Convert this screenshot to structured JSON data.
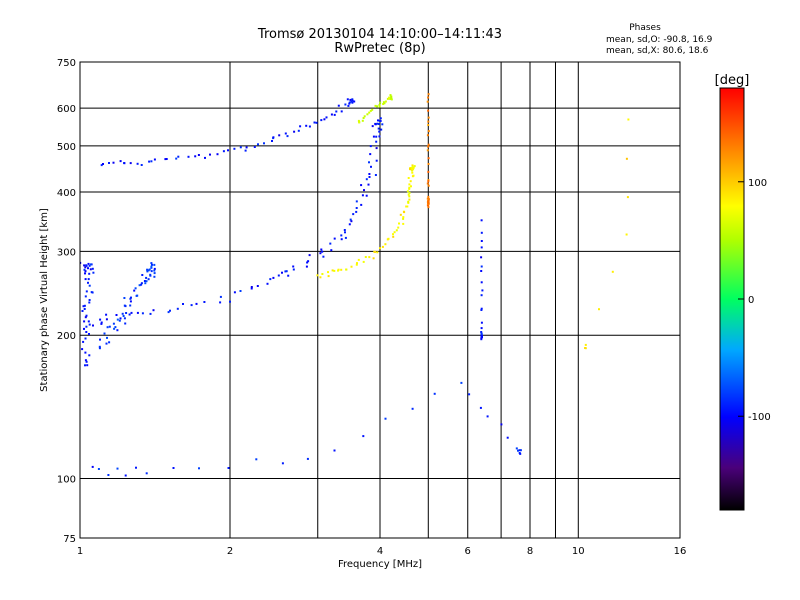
{
  "chart_data": {
    "type": "scatter",
    "title": "Tromsø 20130104 14:10:00–14:11:43",
    "subtitle": "RwPretec (8p)",
    "xlabel": "Frequency [MHz]",
    "ylabel": "Stationary phase Virtual Height [km]",
    "x_scale": "log",
    "y_scale": "log",
    "xlim": [
      1,
      16
    ],
    "ylim": [
      75,
      750
    ],
    "x_ticks": [
      1,
      2,
      4,
      6,
      8,
      10,
      16
    ],
    "y_ticks": [
      75,
      100,
      200,
      300,
      400,
      500,
      600,
      750
    ],
    "x_grid": [
      1,
      2,
      4,
      6,
      8,
      10,
      16
    ],
    "x_minor_grid": [
      3,
      5,
      7,
      9
    ],
    "y_grid": [
      100,
      200,
      300,
      400,
      500,
      600
    ],
    "grid": true,
    "stats": {
      "title": "Phases",
      "o_line": "mean, sd,O: -90.8, 16.9",
      "x_line": "mean, sd,X:  80.6, 18.6"
    },
    "colorbar": {
      "label": "[deg]",
      "min": -180,
      "max": 180,
      "ticks": [
        100,
        0,
        -100
      ]
    },
    "traces": [
      {
        "name": "",
        "phase_deg": -95,
        "spread_f": 0.05,
        "spread_h": 0.03,
        "count": 10,
        "points": [
          [
            1.02,
            170
          ],
          [
            1.02,
            200
          ],
          [
            1.03,
            230
          ],
          [
            1.03,
            260
          ],
          [
            1.04,
            280
          ]
        ]
      },
      {
        "name": "",
        "phase_deg": -95,
        "spread_f": 0.04,
        "spread_h": 0.025,
        "count": 8,
        "points": [
          [
            1.04,
            210
          ],
          [
            1.2,
            220
          ],
          [
            1.5,
            225
          ],
          [
            2.0,
            240
          ],
          [
            2.5,
            265
          ],
          [
            2.8,
            280
          ],
          [
            3.2,
            305
          ],
          [
            3.45,
            340
          ],
          [
            3.7,
            390
          ],
          [
            3.85,
            440
          ],
          [
            3.95,
            520
          ],
          [
            4.0,
            560
          ]
        ]
      },
      {
        "name": "",
        "phase_deg": -85,
        "spread_f": 0.04,
        "spread_h": 0.05,
        "count": 14,
        "points": [
          [
            1.1,
            190
          ],
          [
            1.2,
            215
          ],
          [
            1.3,
            245
          ],
          [
            1.4,
            275
          ]
        ]
      },
      {
        "name": "",
        "phase_deg": -95,
        "spread_f": 0.025,
        "spread_h": 0.02,
        "count": 8,
        "points": [
          [
            1.1,
            455
          ],
          [
            1.3,
            460
          ],
          [
            1.6,
            470
          ],
          [
            2.0,
            485
          ],
          [
            2.4,
            510
          ],
          [
            2.8,
            540
          ],
          [
            3.2,
            580
          ],
          [
            3.5,
            620
          ]
        ]
      },
      {
        "name": "",
        "phase_deg": 80,
        "spread_f": 0.02,
        "spread_h": 0.02,
        "count": 10,
        "points": [
          [
            3.0,
            265
          ],
          [
            3.4,
            275
          ],
          [
            3.9,
            295
          ],
          [
            4.3,
            330
          ],
          [
            4.5,
            370
          ],
          [
            4.6,
            410
          ],
          [
            4.65,
            450
          ]
        ]
      },
      {
        "name": "",
        "phase_deg": 60,
        "spread_f": 0.015,
        "spread_h": 0.02,
        "count": 10,
        "points": [
          [
            3.6,
            560
          ],
          [
            3.9,
            600
          ],
          [
            4.2,
            630
          ]
        ]
      },
      {
        "name": "",
        "phase_deg": 130,
        "spread_f": 0.004,
        "spread_h": 0.04,
        "count": 20,
        "points": [
          [
            5.0,
            640
          ],
          [
            5.0,
            380
          ]
        ]
      },
      {
        "name": "",
        "phase_deg": -95,
        "spread_f": 0.004,
        "spread_h": 0.03,
        "count": 14,
        "points": [
          [
            6.4,
            340
          ],
          [
            6.4,
            200
          ]
        ]
      },
      {
        "name": "",
        "phase_deg": -90,
        "spread_f": 0.02,
        "spread_h": 0.03,
        "count": 6,
        "points": [
          [
            1.05,
            105
          ],
          [
            1.35,
            103
          ],
          [
            2.9,
            110
          ],
          [
            5.8,
            160
          ],
          [
            7.6,
            115
          ]
        ]
      },
      {
        "name": "",
        "phase_deg": 90,
        "spread_f": 0.01,
        "spread_h": 0.02,
        "count": 3,
        "points": [
          [
            12.5,
            570
          ],
          [
            12.5,
            325
          ],
          [
            10.3,
            190
          ]
        ]
      }
    ]
  }
}
